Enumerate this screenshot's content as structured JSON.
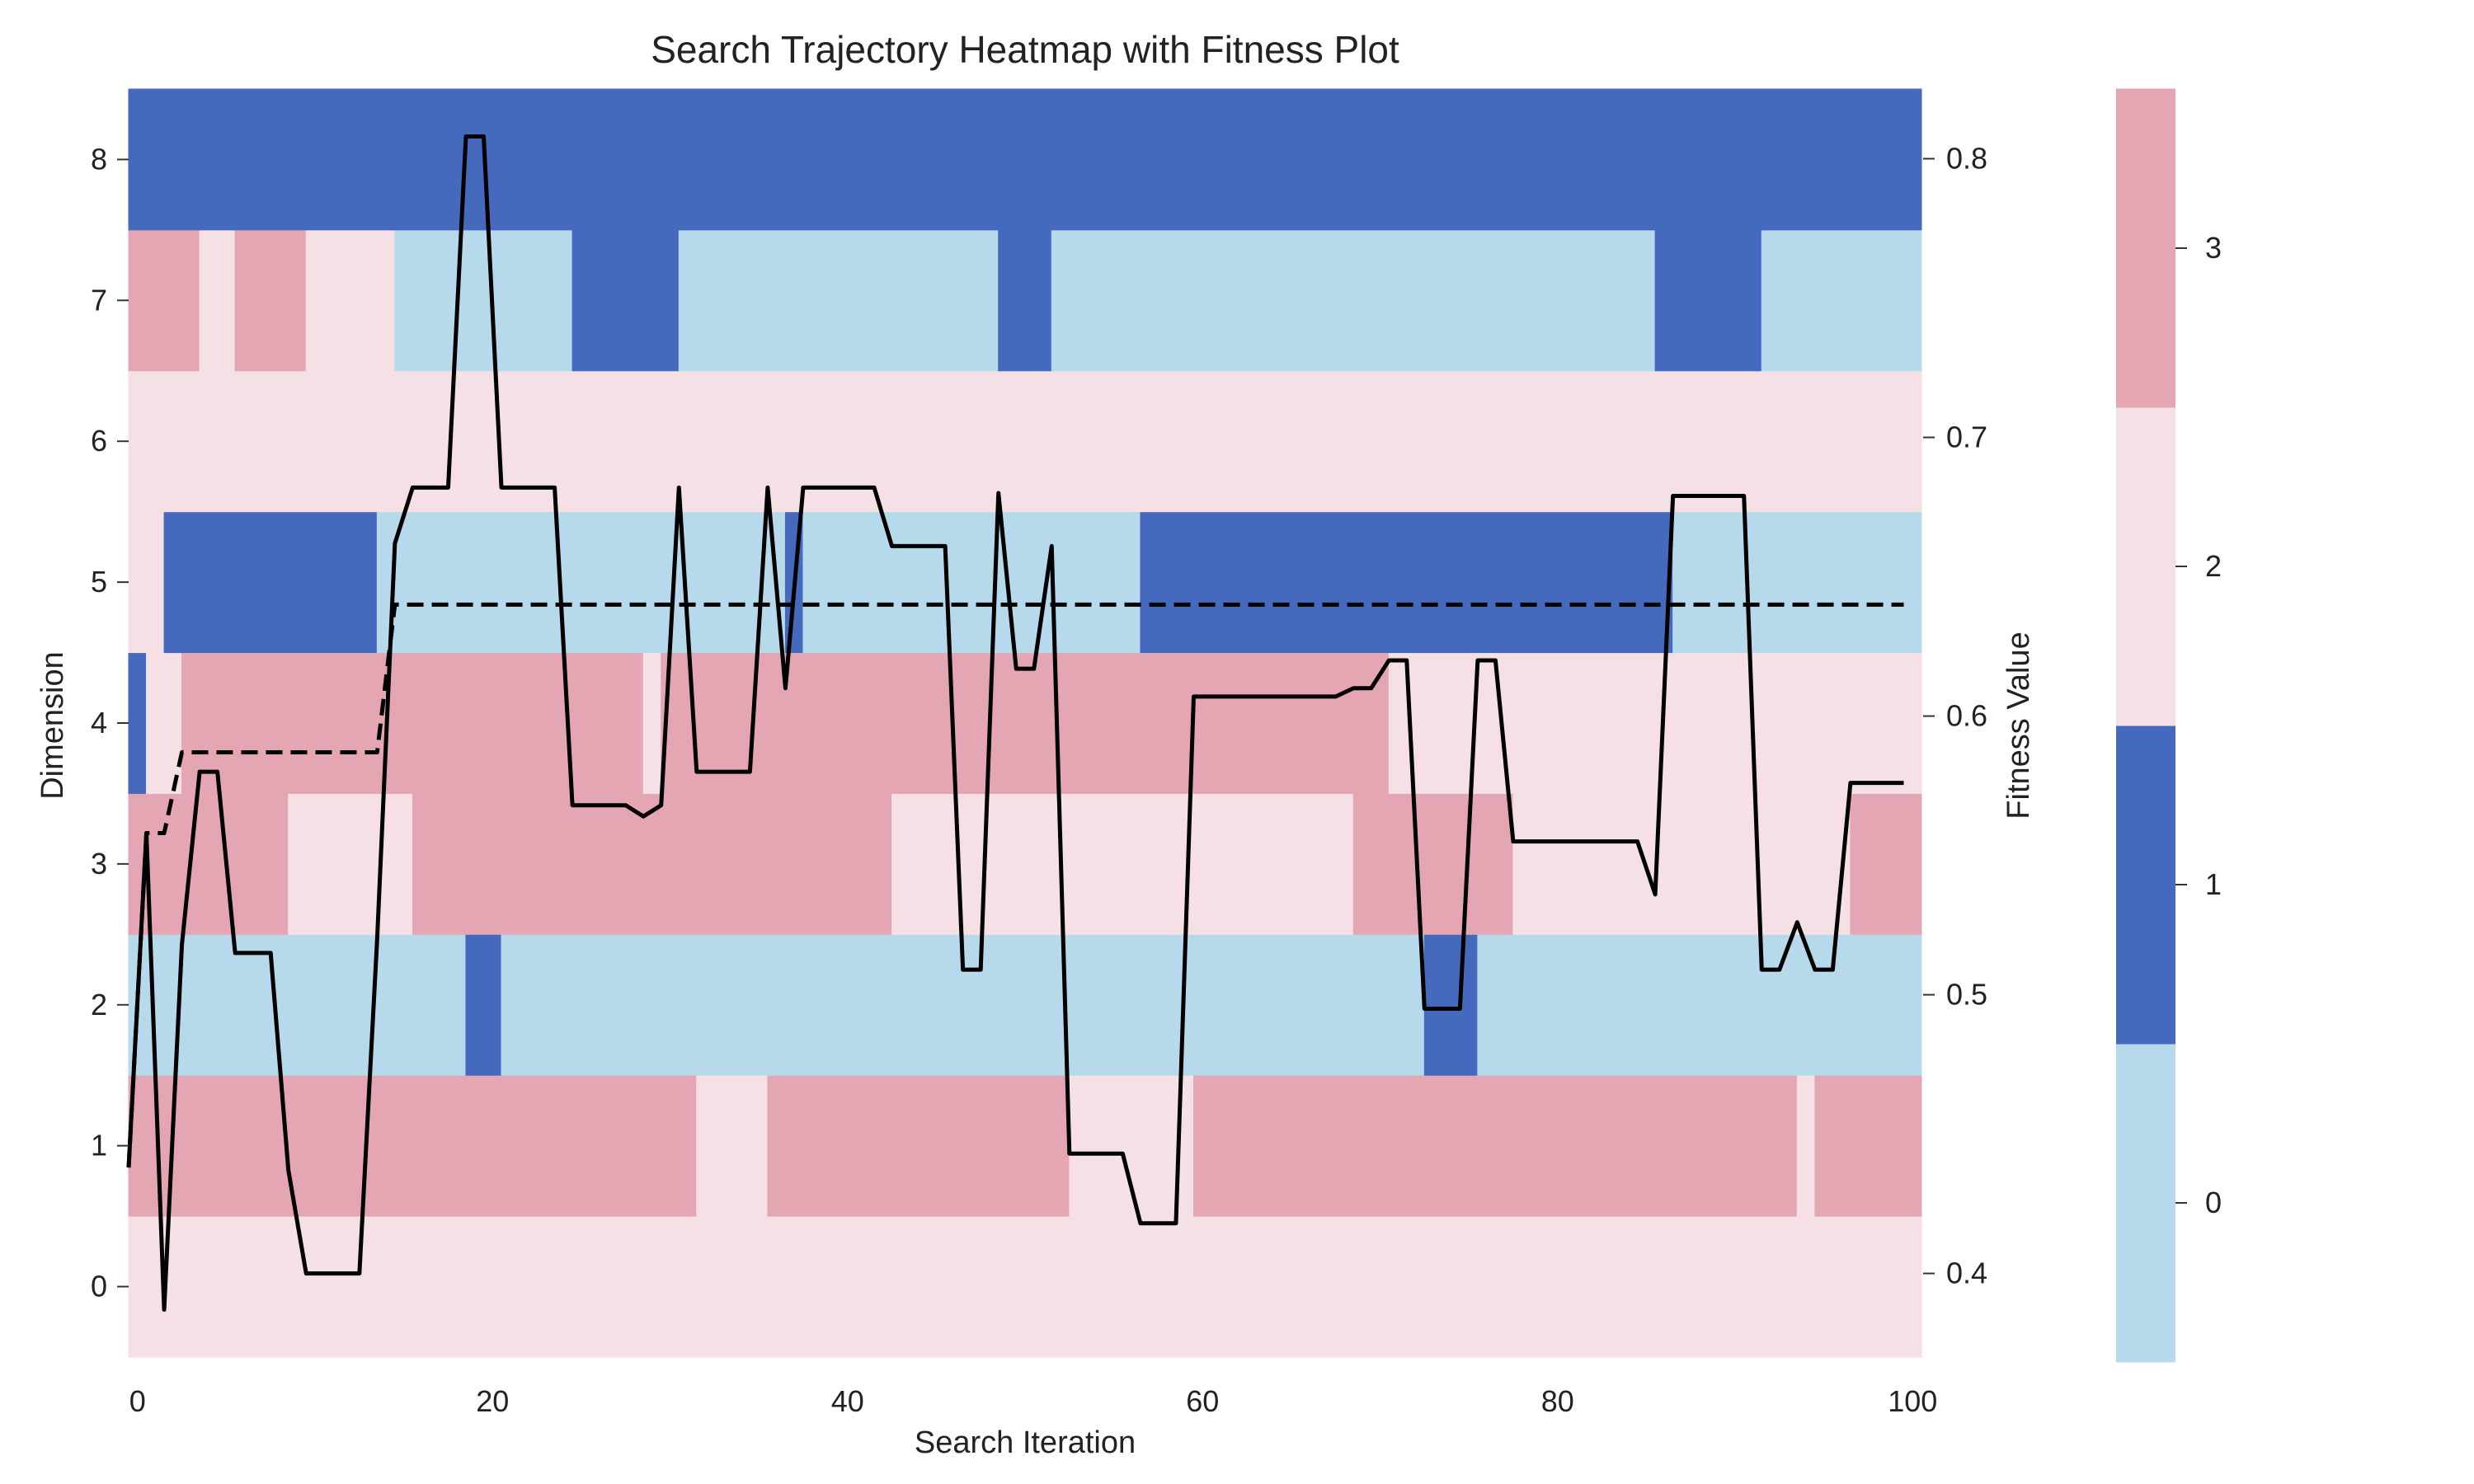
{
  "chart_data": {
    "type": "heatmap",
    "title": "Search Trajectory Heatmap with Fitness Plot",
    "xlabel": "Search Iteration",
    "ylabel": "Dimension",
    "y2label": "Fitness Value",
    "xlim": [
      0,
      101
    ],
    "x_ticks": [
      0,
      20,
      40,
      60,
      80,
      100
    ],
    "y_ticks": [
      0,
      1,
      2,
      3,
      4,
      5,
      6,
      7,
      8
    ],
    "y2lim": [
      0.37,
      0.825
    ],
    "y2_ticks": [
      0.4,
      0.5,
      0.6,
      0.7,
      0.8
    ],
    "colorbar": {
      "ticks": [
        0,
        1,
        2,
        3
      ],
      "colors": [
        "#b6d9ec",
        "#4569bc",
        "#f5e0e6",
        "#e5a6b4"
      ]
    },
    "heatmap_rows": [
      {
        "dimension": 0,
        "segments": [
          [
            0,
            101,
            2
          ]
        ]
      },
      {
        "dimension": 1,
        "segments": [
          [
            0,
            32,
            3
          ],
          [
            32,
            36,
            2
          ],
          [
            36,
            53,
            3
          ],
          [
            53,
            60,
            2
          ],
          [
            60,
            94,
            3
          ],
          [
            94,
            95,
            2
          ],
          [
            95,
            101,
            3
          ]
        ]
      },
      {
        "dimension": 2,
        "segments": [
          [
            0,
            19,
            0
          ],
          [
            19,
            21,
            1
          ],
          [
            21,
            73,
            0
          ],
          [
            73,
            76,
            1
          ],
          [
            76,
            101,
            0
          ]
        ]
      },
      {
        "dimension": 3,
        "segments": [
          [
            0,
            9,
            3
          ],
          [
            9,
            16,
            2
          ],
          [
            16,
            43,
            3
          ],
          [
            43,
            69,
            2
          ],
          [
            69,
            78,
            3
          ],
          [
            78,
            97,
            2
          ],
          [
            97,
            101,
            3
          ]
        ]
      },
      {
        "dimension": 4,
        "segments": [
          [
            0,
            1,
            1
          ],
          [
            1,
            3,
            2
          ],
          [
            3,
            29,
            3
          ],
          [
            29,
            30,
            2
          ],
          [
            30,
            50,
            3
          ],
          [
            50,
            71,
            3
          ],
          [
            71,
            101,
            2
          ]
        ]
      },
      {
        "dimension": 5,
        "segments": [
          [
            0,
            2,
            2
          ],
          [
            2,
            14,
            1
          ],
          [
            14,
            37,
            0
          ],
          [
            37,
            38,
            1
          ],
          [
            38,
            57,
            0
          ],
          [
            57,
            87,
            1
          ],
          [
            87,
            101,
            0
          ]
        ]
      },
      {
        "dimension": 6,
        "segments": [
          [
            0,
            101,
            2
          ]
        ]
      },
      {
        "dimension": 7,
        "segments": [
          [
            0,
            4,
            3
          ],
          [
            4,
            6,
            2
          ],
          [
            6,
            10,
            3
          ],
          [
            10,
            15,
            2
          ],
          [
            15,
            25,
            0
          ],
          [
            25,
            31,
            1
          ],
          [
            31,
            49,
            0
          ],
          [
            49,
            52,
            1
          ],
          [
            52,
            86,
            0
          ],
          [
            86,
            92,
            1
          ],
          [
            92,
            101,
            0
          ]
        ]
      },
      {
        "dimension": 8,
        "segments": [
          [
            0,
            101,
            1
          ]
        ]
      }
    ],
    "series": [
      {
        "style": "solid",
        "color": "#000000",
        "x": [
          0,
          1,
          2,
          3,
          4,
          5,
          6,
          7,
          8,
          9,
          10,
          11,
          12,
          13,
          14,
          15,
          16,
          17,
          18,
          19,
          20,
          21,
          22,
          23,
          24,
          25,
          26,
          27,
          28,
          29,
          30,
          31,
          32,
          33,
          34,
          35,
          36,
          37,
          38,
          39,
          40,
          41,
          42,
          43,
          44,
          45,
          46,
          47,
          48,
          49,
          50,
          51,
          52,
          53,
          54,
          55,
          56,
          57,
          58,
          59,
          60,
          61,
          62,
          63,
          64,
          65,
          66,
          67,
          68,
          69,
          70,
          71,
          72,
          73,
          74,
          75,
          76,
          77,
          78,
          79,
          80,
          81,
          82,
          83,
          84,
          85,
          86,
          87,
          88,
          89,
          90,
          91,
          92,
          93,
          94,
          95,
          96,
          97,
          98,
          99,
          100
        ],
        "values": [
          0.438,
          0.558,
          0.387,
          0.518,
          0.58,
          0.58,
          0.515,
          0.515,
          0.515,
          0.437,
          0.4,
          0.4,
          0.4,
          0.4,
          0.52,
          0.662,
          0.682,
          0.682,
          0.682,
          0.808,
          0.808,
          0.682,
          0.682,
          0.682,
          0.682,
          0.568,
          0.568,
          0.568,
          0.568,
          0.564,
          0.568,
          0.682,
          0.58,
          0.58,
          0.58,
          0.58,
          0.682,
          0.61,
          0.682,
          0.682,
          0.682,
          0.682,
          0.682,
          0.661,
          0.661,
          0.661,
          0.661,
          0.509,
          0.509,
          0.68,
          0.617,
          0.617,
          0.661,
          0.443,
          0.443,
          0.443,
          0.443,
          0.418,
          0.418,
          0.418,
          0.607,
          0.607,
          0.607,
          0.607,
          0.607,
          0.607,
          0.607,
          0.607,
          0.607,
          0.61,
          0.61,
          0.62,
          0.62,
          0.495,
          0.495,
          0.495,
          0.62,
          0.62,
          0.555,
          0.555,
          0.555,
          0.555,
          0.555,
          0.555,
          0.555,
          0.555,
          0.536,
          0.679,
          0.679,
          0.679,
          0.679,
          0.679,
          0.509,
          0.509,
          0.526,
          0.509,
          0.509,
          0.576,
          0.576,
          0.576,
          0.576
        ]
      },
      {
        "style": "dashed",
        "color": "#000000",
        "x": [
          0,
          1,
          2,
          3,
          4,
          5,
          6,
          7,
          8,
          9,
          10,
          11,
          12,
          13,
          14,
          15,
          16,
          17,
          18,
          19,
          20,
          21,
          22,
          23,
          24,
          25,
          26,
          27,
          28,
          29,
          30,
          31,
          32,
          33,
          34,
          35,
          36,
          37,
          38,
          39,
          40,
          41,
          42,
          43,
          44,
          45,
          46,
          47,
          48,
          49,
          50,
          51,
          52,
          53,
          54,
          55,
          56,
          57,
          58,
          59,
          60,
          61,
          62,
          63,
          64,
          65,
          66,
          67,
          68,
          69,
          70,
          71,
          72,
          73,
          74,
          75,
          76,
          77,
          78,
          79,
          80,
          81,
          82,
          83,
          84,
          85,
          86,
          87,
          88,
          89,
          90,
          91,
          92,
          93,
          94,
          95,
          96,
          97,
          98,
          99,
          100
        ],
        "values": [
          0.438,
          0.558,
          0.558,
          0.587,
          0.587,
          0.587,
          0.587,
          0.587,
          0.587,
          0.587,
          0.587,
          0.587,
          0.587,
          0.587,
          0.587,
          0.64,
          0.64,
          0.64,
          0.64,
          0.64,
          0.64,
          0.64,
          0.64,
          0.64,
          0.64,
          0.64,
          0.64,
          0.64,
          0.64,
          0.64,
          0.64,
          0.64,
          0.64,
          0.64,
          0.64,
          0.64,
          0.64,
          0.64,
          0.64,
          0.64,
          0.64,
          0.64,
          0.64,
          0.64,
          0.64,
          0.64,
          0.64,
          0.64,
          0.64,
          0.64,
          0.64,
          0.64,
          0.64,
          0.64,
          0.64,
          0.64,
          0.64,
          0.64,
          0.64,
          0.64,
          0.64,
          0.64,
          0.64,
          0.64,
          0.64,
          0.64,
          0.64,
          0.64,
          0.64,
          0.64,
          0.64,
          0.64,
          0.64,
          0.64,
          0.64,
          0.64,
          0.64,
          0.64,
          0.64,
          0.64,
          0.64,
          0.64,
          0.64,
          0.64,
          0.64,
          0.64,
          0.64,
          0.64,
          0.64,
          0.64,
          0.64,
          0.64,
          0.64,
          0.64,
          0.64,
          0.64,
          0.64,
          0.64,
          0.64,
          0.64,
          0.64
        ]
      }
    ]
  }
}
